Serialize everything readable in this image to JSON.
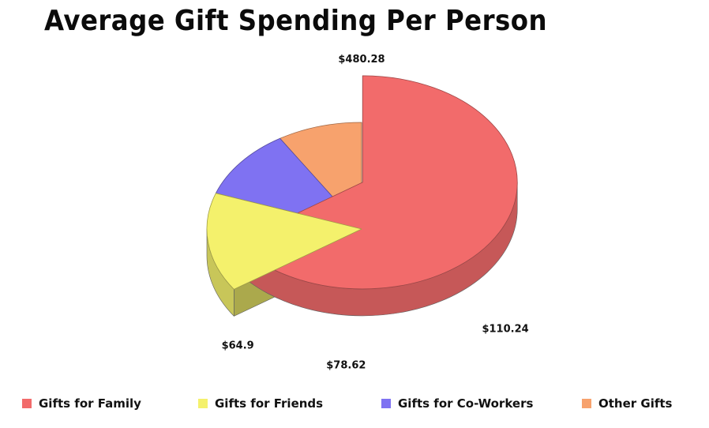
{
  "chart_data": {
    "type": "pie",
    "title": "Average Gift Spending Per Person",
    "categories": [
      "Gifts for Family",
      "Gifts for Friends",
      "Gifts for Co-Workers",
      "Other Gifts"
    ],
    "values": [
      480.28,
      110.24,
      78.62,
      64.9
    ],
    "value_labels": [
      "$480.28",
      "$110.24",
      "$78.62",
      "$64.9"
    ],
    "colors": [
      "#f26b6b",
      "#f4f16c",
      "#7f72f2",
      "#f7a26d"
    ],
    "legend_position": "bottom",
    "style": "3d"
  }
}
